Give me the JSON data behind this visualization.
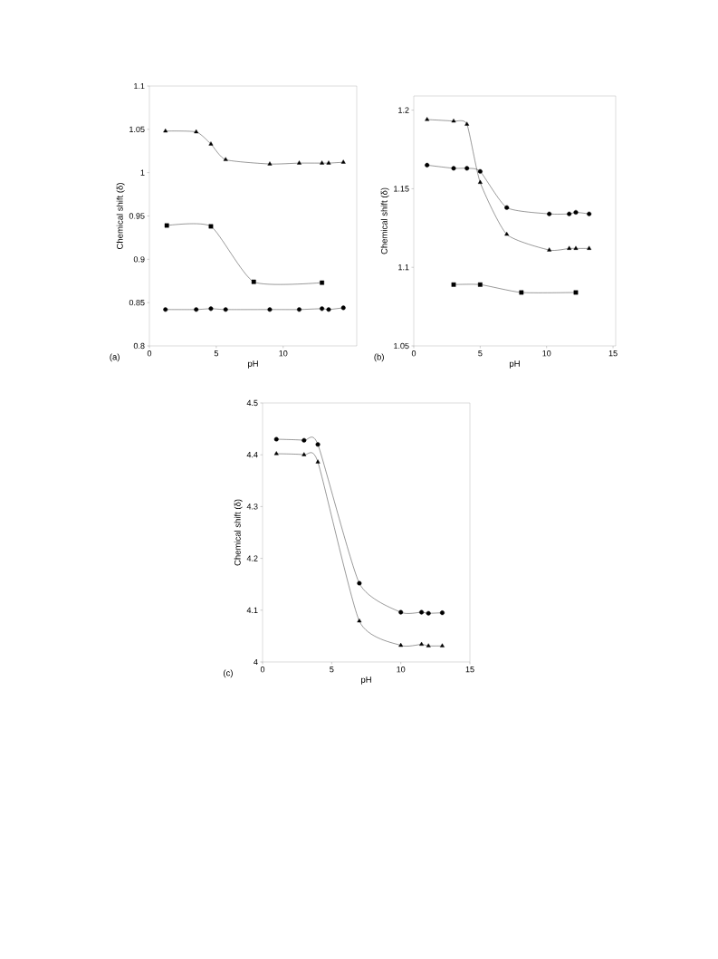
{
  "chart_data": [
    {
      "type": "line",
      "xlabel": "pH",
      "ylabel": "Chemical shift (δ)",
      "annotations": [
        "(a)"
      ],
      "xlim": [
        0,
        15.5
      ],
      "ylim": [
        0.8,
        1.1
      ],
      "xticks": [
        0,
        5,
        10
      ],
      "yticks": [
        0.8,
        0.85,
        0.9,
        0.95,
        1,
        1.05,
        1.1
      ],
      "series": [
        {
          "color": "#000000",
          "marker": "triangle",
          "x": [
            1.2,
            3.5,
            4.6,
            5.7,
            9.0,
            11.2,
            12.9,
            13.4,
            14.5
          ],
          "values": [
            1.048,
            1.047,
            1.033,
            1.015,
            1.01,
            1.011,
            1.011,
            1.011,
            1.012
          ]
        },
        {
          "color": "#000000",
          "marker": "square",
          "x": [
            1.3,
            4.6,
            7.8,
            12.9
          ],
          "values": [
            0.939,
            0.938,
            0.874,
            0.873
          ]
        },
        {
          "color": "#000000",
          "marker": "circle",
          "x": [
            1.2,
            3.5,
            4.6,
            5.7,
            9.0,
            11.2,
            12.9,
            13.4,
            14.5
          ],
          "values": [
            0.842,
            0.842,
            0.843,
            0.842,
            0.842,
            0.842,
            0.843,
            0.842,
            0.844
          ]
        }
      ]
    },
    {
      "type": "line",
      "xlabel": "pH",
      "ylabel": "Chemical shift (δ)",
      "annotations": [
        "(b)"
      ],
      "xlim": [
        0,
        15.2
      ],
      "ylim": [
        1.05,
        1.209
      ],
      "xticks": [
        0,
        5,
        10,
        15
      ],
      "yticks": [
        1.05,
        1.1,
        1.15,
        1.2
      ],
      "series": [
        {
          "color": "#000000",
          "marker": "triangle",
          "x": [
            1,
            3,
            4,
            5,
            7,
            10.2,
            11.7,
            12.2,
            13.2
          ],
          "values": [
            1.194,
            1.193,
            1.191,
            1.154,
            1.121,
            1.111,
            1.112,
            1.112,
            1.112
          ]
        },
        {
          "color": "#000000",
          "marker": "circle",
          "x": [
            1,
            3,
            4,
            5,
            7,
            10.2,
            11.7,
            12.2,
            13.2
          ],
          "values": [
            1.165,
            1.163,
            1.163,
            1.161,
            1.138,
            1.134,
            1.134,
            1.135,
            1.134
          ]
        },
        {
          "color": "#000000",
          "marker": "square",
          "x": [
            3,
            5,
            8.1,
            12.2
          ],
          "values": [
            1.089,
            1.089,
            1.084,
            1.084
          ]
        }
      ]
    },
    {
      "type": "line",
      "xlabel": "pH",
      "ylabel": "Chemical shift (δ)",
      "annotations": [
        "(c)"
      ],
      "xlim": [
        0,
        15
      ],
      "ylim": [
        4,
        4.5
      ],
      "xticks": [
        0,
        5,
        10,
        15
      ],
      "yticks": [
        4,
        4.1,
        4.2,
        4.3,
        4.4,
        4.5
      ],
      "series": [
        {
          "color": "#000000",
          "marker": "circle",
          "x": [
            1,
            3,
            4,
            7,
            10,
            11.5,
            12,
            13
          ],
          "values": [
            4.43,
            4.428,
            4.42,
            4.152,
            4.096,
            4.096,
            4.094,
            4.095
          ]
        },
        {
          "color": "#000000",
          "marker": "triangle",
          "x": [
            1,
            3,
            4,
            7,
            10,
            11.5,
            12,
            13
          ],
          "values": [
            4.402,
            4.4,
            4.386,
            4.079,
            4.032,
            4.034,
            4.031,
            4.031
          ]
        }
      ]
    }
  ]
}
